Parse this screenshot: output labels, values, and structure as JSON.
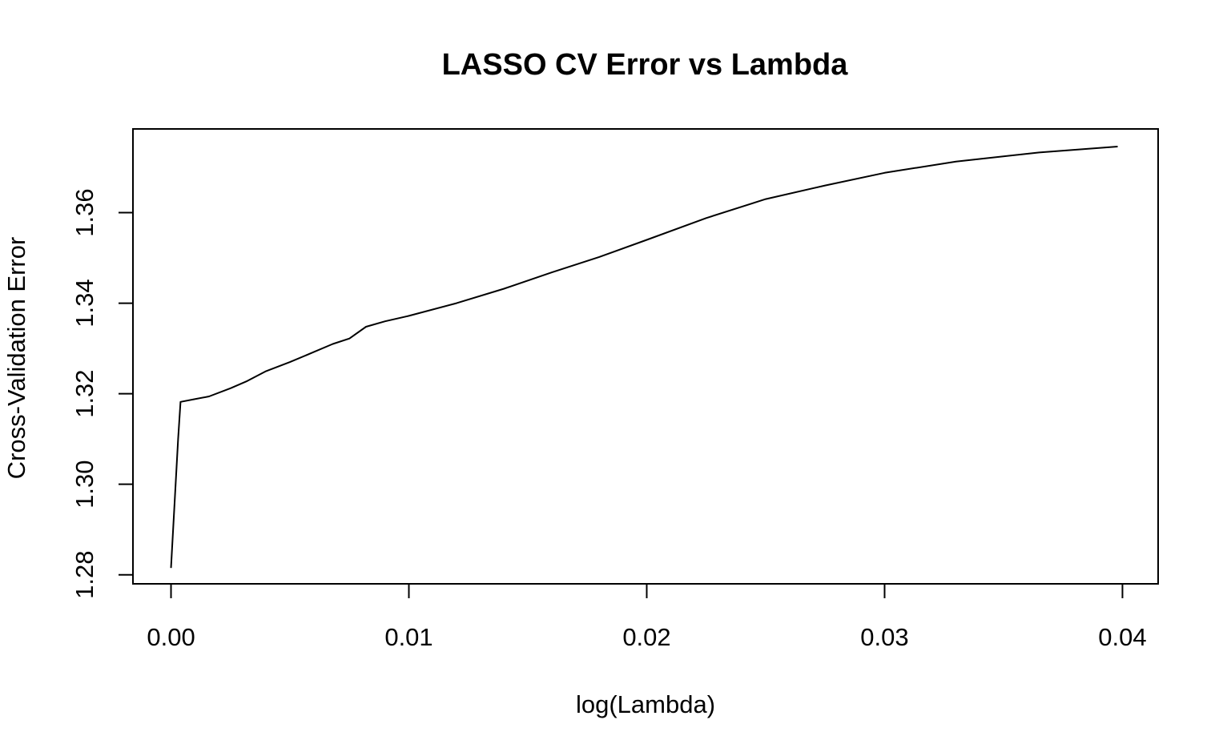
{
  "chart_data": {
    "type": "line",
    "title": "LASSO CV Error vs Lambda",
    "xlabel": "log(Lambda)",
    "ylabel": "Cross-Validation Error",
    "xlim": [
      -0.0016,
      0.0415
    ],
    "ylim": [
      1.278,
      1.3785
    ],
    "x_ticks": [
      {
        "value": 0.0,
        "label": "0.00"
      },
      {
        "value": 0.01,
        "label": "0.01"
      },
      {
        "value": 0.02,
        "label": "0.02"
      },
      {
        "value": 0.03,
        "label": "0.03"
      },
      {
        "value": 0.04,
        "label": "0.04"
      }
    ],
    "y_ticks": [
      {
        "value": 1.28,
        "label": "1.28"
      },
      {
        "value": 1.3,
        "label": "1.30"
      },
      {
        "value": 1.32,
        "label": "1.32"
      },
      {
        "value": 1.34,
        "label": "1.34"
      },
      {
        "value": 1.36,
        "label": "1.36"
      }
    ],
    "grid": false,
    "series": [
      {
        "x": [
          0.0,
          0.0003,
          0.0004,
          0.001,
          0.0016,
          0.0025,
          0.0032,
          0.004,
          0.005,
          0.006,
          0.0068,
          0.0075,
          0.0082,
          0.009,
          0.01,
          0.012,
          0.014,
          0.016,
          0.018,
          0.02,
          0.0225,
          0.025,
          0.0275,
          0.03,
          0.033,
          0.0365,
          0.0398
        ],
        "y": [
          1.2815,
          1.31,
          1.3182,
          1.3188,
          1.3194,
          1.3212,
          1.3228,
          1.325,
          1.327,
          1.3292,
          1.331,
          1.3322,
          1.3348,
          1.336,
          1.3372,
          1.34,
          1.3432,
          1.3468,
          1.3502,
          1.354,
          1.3588,
          1.363,
          1.366,
          1.3688,
          1.3713,
          1.3733,
          1.3746
        ]
      }
    ]
  }
}
